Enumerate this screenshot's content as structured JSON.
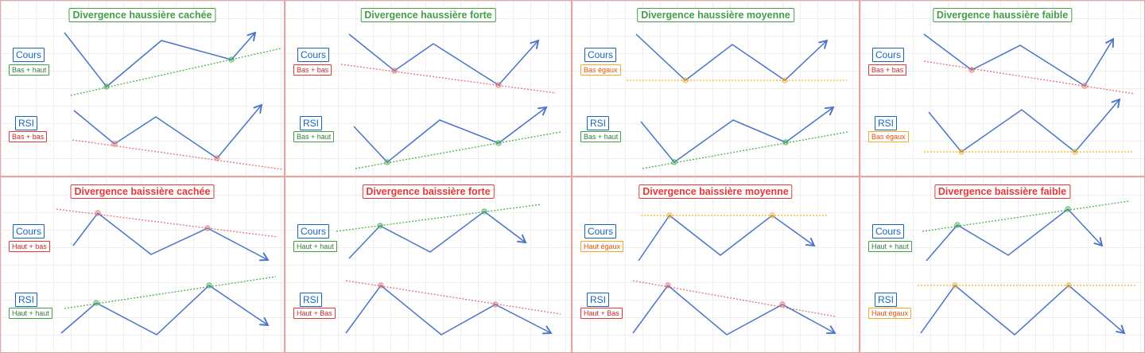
{
  "colors": {
    "line": "#4a74c9",
    "green": "#4caf50",
    "red": "#e57373",
    "orange": "#f0b429",
    "panel_border": "#e8a3a3"
  },
  "panels": [
    {
      "title": "Divergence haussière cachée",
      "kind": "bull",
      "price_label": "Cours",
      "price_tag": "Bas + haut",
      "price_tag_color": "green",
      "rsi_label": "RSI",
      "rsi_tag": "Bas + bas",
      "rsi_tag_color": "red",
      "price_line": [
        [
          80,
          40
        ],
        [
          133,
          108
        ],
        [
          202,
          50
        ],
        [
          290,
          74
        ],
        [
          320,
          40
        ]
      ],
      "price_ref": [
        [
          88,
          119
        ],
        [
          352,
          60
        ]
      ],
      "price_ref_color": "green",
      "price_dots": [
        [
          133,
          108
        ],
        [
          290,
          74
        ]
      ],
      "rsi_line": [
        [
          92,
          138
        ],
        [
          143,
          180
        ],
        [
          195,
          146
        ],
        [
          272,
          198
        ],
        [
          328,
          131
        ]
      ],
      "rsi_ref": [
        [
          90,
          175
        ],
        [
          354,
          212
        ]
      ],
      "rsi_ref_color": "red",
      "rsi_dots": [
        [
          143,
          180
        ],
        [
          272,
          198
        ]
      ]
    },
    {
      "title": "Divergence haussière forte",
      "kind": "bull",
      "price_label": "Cours",
      "price_tag": "Bas + bas",
      "price_tag_color": "red",
      "rsi_label": "RSI",
      "rsi_tag": "Bas + haut",
      "rsi_tag_color": "green",
      "price_line": [
        [
          80,
          42
        ],
        [
          137,
          88
        ],
        [
          186,
          54
        ],
        [
          268,
          106
        ],
        [
          318,
          50
        ]
      ],
      "price_ref": [
        [
          70,
          80
        ],
        [
          340,
          116
        ]
      ],
      "price_ref_color": "red",
      "price_dots": [
        [
          137,
          88
        ],
        [
          268,
          106
        ]
      ],
      "rsi_line": [
        [
          86,
          158
        ],
        [
          128,
          203
        ],
        [
          194,
          150
        ],
        [
          268,
          179
        ],
        [
          328,
          134
        ]
      ],
      "rsi_ref": [
        [
          88,
          211
        ],
        [
          346,
          165
        ]
      ],
      "rsi_ref_color": "green",
      "rsi_dots": [
        [
          128,
          203
        ],
        [
          268,
          179
        ]
      ]
    },
    {
      "title": "Divergence haussière moyenne",
      "kind": "bull",
      "price_label": "Cours",
      "price_tag": "Bas égaux",
      "price_tag_color": "orange",
      "rsi_label": "RSI",
      "rsi_tag": "Bas + haut",
      "rsi_tag_color": "green",
      "price_line": [
        [
          80,
          42
        ],
        [
          142,
          100
        ],
        [
          201,
          55
        ],
        [
          267,
          100
        ],
        [
          320,
          50
        ]
      ],
      "price_ref": [
        [
          68,
          100
        ],
        [
          345,
          100
        ]
      ],
      "price_ref_color": "orange",
      "price_dots": [
        [
          142,
          100
        ],
        [
          267,
          100
        ]
      ],
      "rsi_line": [
        [
          86,
          152
        ],
        [
          128,
          203
        ],
        [
          202,
          150
        ],
        [
          268,
          178
        ],
        [
          328,
          134
        ]
      ],
      "rsi_ref": [
        [
          88,
          211
        ],
        [
          346,
          165
        ]
      ],
      "rsi_ref_color": "green",
      "rsi_dots": [
        [
          128,
          203
        ],
        [
          268,
          178
        ]
      ]
    },
    {
      "title": "Divergence haussière faible",
      "kind": "bull",
      "price_label": "Cours",
      "price_tag": "Bas + bas",
      "price_tag_color": "red",
      "rsi_label": "RSI",
      "rsi_tag": "Bas égaux",
      "rsi_tag_color": "orange",
      "price_line": [
        [
          80,
          42
        ],
        [
          140,
          87
        ],
        [
          201,
          56
        ],
        [
          282,
          107
        ],
        [
          318,
          48
        ]
      ],
      "price_ref": [
        [
          80,
          76
        ],
        [
          345,
          117
        ]
      ],
      "price_ref_color": "red",
      "price_dots": [
        [
          140,
          87
        ],
        [
          282,
          107
        ]
      ],
      "rsi_line": [
        [
          86,
          140
        ],
        [
          127,
          190
        ],
        [
          203,
          137
        ],
        [
          270,
          190
        ],
        [
          326,
          124
        ]
      ],
      "rsi_ref": [
        [
          80,
          190
        ],
        [
          342,
          190
        ]
      ],
      "rsi_ref_color": "orange",
      "rsi_dots": [
        [
          127,
          190
        ],
        [
          270,
          190
        ]
      ]
    },
    {
      "title": "Divergence baissière cachée",
      "kind": "bear",
      "price_label": "Cours",
      "price_tag": "Haut + bas",
      "price_tag_color": "red",
      "rsi_label": "RSI",
      "rsi_tag": "Haut + haut",
      "rsi_tag_color": "green",
      "price_line": [
        [
          91,
          86
        ],
        [
          122,
          45
        ],
        [
          189,
          97
        ],
        [
          260,
          64
        ],
        [
          336,
          104
        ]
      ],
      "price_ref": [
        [
          70,
          40
        ],
        [
          348,
          75
        ]
      ],
      "price_ref_color": "red",
      "price_dots": [
        [
          122,
          45
        ],
        [
          260,
          64
        ]
      ],
      "rsi_line": [
        [
          76,
          196
        ],
        [
          120,
          158
        ],
        [
          196,
          198
        ],
        [
          262,
          136
        ],
        [
          336,
          186
        ]
      ],
      "rsi_ref": [
        [
          80,
          165
        ],
        [
          346,
          125
        ]
      ],
      "rsi_ref_color": "green",
      "rsi_dots": [
        [
          120,
          158
        ],
        [
          262,
          136
        ]
      ]
    },
    {
      "title": "Divergence baissière forte",
      "kind": "bear",
      "price_label": "Cours",
      "price_tag": "Haut + haut",
      "price_tag_color": "green",
      "rsi_label": "RSI",
      "rsi_tag": "Haut + Bas",
      "rsi_tag_color": "red",
      "price_line": [
        [
          80,
          102
        ],
        [
          119,
          61
        ],
        [
          182,
          94
        ],
        [
          250,
          43
        ],
        [
          302,
          82
        ]
      ],
      "price_ref": [
        [
          64,
          68
        ],
        [
          322,
          34
        ]
      ],
      "price_ref_color": "green",
      "price_dots": [
        [
          119,
          61
        ],
        [
          250,
          43
        ]
      ],
      "rsi_line": [
        [
          76,
          196
        ],
        [
          120,
          136
        ],
        [
          196,
          198
        ],
        [
          264,
          160
        ],
        [
          334,
          196
        ]
      ],
      "rsi_ref": [
        [
          76,
          130
        ],
        [
          346,
          172
        ]
      ],
      "rsi_ref_color": "red",
      "rsi_dots": [
        [
          120,
          136
        ],
        [
          264,
          160
        ]
      ]
    },
    {
      "title": "Divergence baissière moyenne",
      "kind": "bear",
      "price_label": "Cours",
      "price_tag": "Haut égaux",
      "price_tag_color": "orange",
      "rsi_label": "RSI",
      "rsi_tag": "Haut + Bas",
      "rsi_tag_color": "red",
      "price_line": [
        [
          83,
          105
        ],
        [
          122,
          48
        ],
        [
          186,
          98
        ],
        [
          251,
          48
        ],
        [
          304,
          86
        ]
      ],
      "price_ref": [
        [
          86,
          48
        ],
        [
          320,
          48
        ]
      ],
      "price_ref_color": "orange",
      "price_dots": [
        [
          122,
          48
        ],
        [
          251,
          48
        ]
      ],
      "rsi_line": [
        [
          76,
          196
        ],
        [
          120,
          136
        ],
        [
          194,
          198
        ],
        [
          264,
          160
        ],
        [
          330,
          196
        ]
      ],
      "rsi_ref": [
        [
          76,
          130
        ],
        [
          330,
          175
        ]
      ],
      "rsi_ref_color": "red",
      "rsi_dots": [
        [
          120,
          136
        ],
        [
          264,
          160
        ]
      ]
    },
    {
      "title": "Divergence baissière faible",
      "kind": "bear",
      "price_label": "Cours",
      "price_tag": "Haut + haut",
      "price_tag_color": "green",
      "rsi_label": "RSI",
      "rsi_tag": "Haut égaux",
      "rsi_tag_color": "orange",
      "price_line": [
        [
          83,
          105
        ],
        [
          122,
          60
        ],
        [
          186,
          98
        ],
        [
          261,
          40
        ],
        [
          304,
          86
        ]
      ],
      "price_ref": [
        [
          78,
          68
        ],
        [
          338,
          30
        ]
      ],
      "price_ref_color": "green",
      "price_dots": [
        [
          122,
          60
        ],
        [
          261,
          40
        ]
      ],
      "rsi_line": [
        [
          76,
          196
        ],
        [
          119,
          136
        ],
        [
          194,
          198
        ],
        [
          262,
          136
        ],
        [
          332,
          196
        ]
      ],
      "rsi_ref": [
        [
          72,
          136
        ],
        [
          346,
          136
        ]
      ],
      "rsi_ref_color": "orange",
      "rsi_dots": [
        [
          119,
          136
        ],
        [
          262,
          136
        ]
      ]
    }
  ]
}
